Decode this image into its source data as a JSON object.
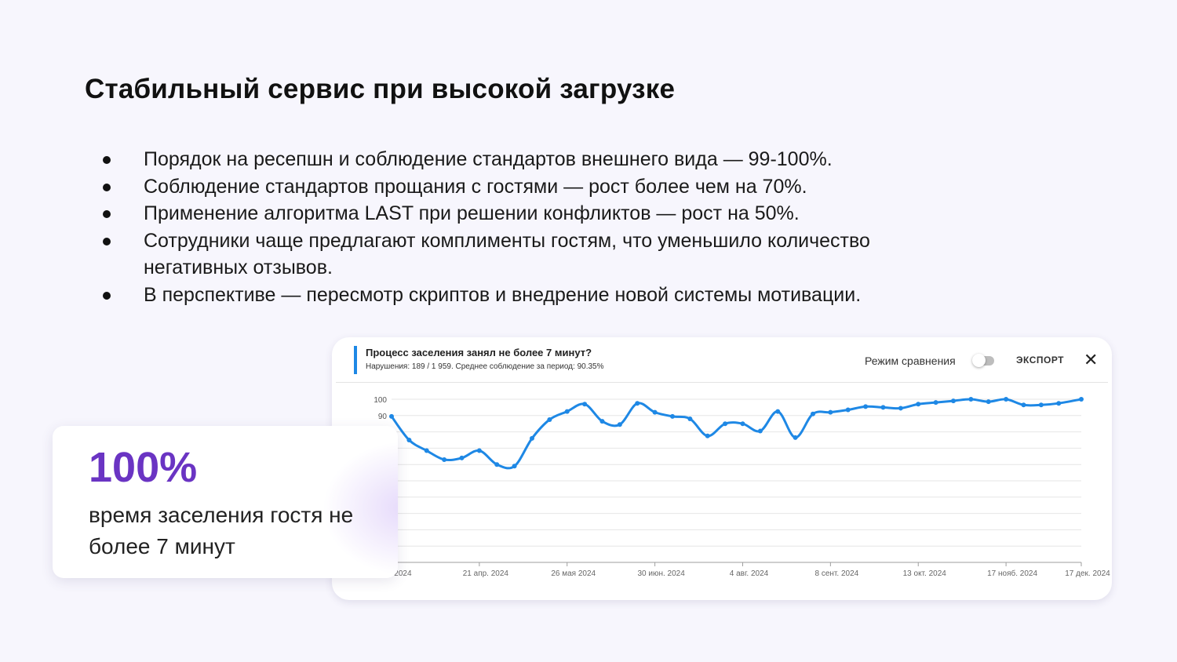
{
  "heading": "Стабильный сервис при высокой загрузке",
  "bullets": [
    "Порядок на ресепшн и соблюдение стандартов внешнего вида — 99-100%.",
    "Соблюдение стандартов прощания с гостями — рост более чем на 70%.",
    "Применение алгоритма LAST при решении конфликтов — рост на 50%.",
    "Сотрудники чаще предлагают комплименты гостям, что уменьшило количество негативных отзывов.",
    "В перспективе — пересмотр скриптов и внедрение новой системы мотивации."
  ],
  "chart_card": {
    "title": "Процесс заселения занял не более 7 минут?",
    "subtitle": "Нарушения: 189 / 1 959. Среднее соблюдение за период: 90.35%",
    "compare_label": "Режим сравнения",
    "compare_enabled": false,
    "export_label": "ЭКСПОРТ",
    "close_icon": "close-icon"
  },
  "stat": {
    "value": "100%",
    "description": "время заселения гостя не более 7 минут"
  },
  "colors": {
    "line": "#1E88E5",
    "accent_purple": "#6A34C3",
    "page_bg": "#F7F6FD"
  },
  "chart_data": {
    "type": "line",
    "title": "Процесс заселения занял не более 7 минут?",
    "xlabel": "",
    "ylabel": "",
    "ylim": [
      0,
      100
    ],
    "grid": true,
    "ytick_labels": [
      "100",
      "90"
    ],
    "xtick_labels": [
      "… 2024",
      "21 апр. 2024",
      "26 мая 2024",
      "30 июн. 2024",
      "4 авг. 2024",
      "8 сент. 2024",
      "13 окт. 2024",
      "17 нояб. 2024",
      "17 дек. 2024"
    ],
    "xtick_dates": [
      "2024-03-17",
      "2024-04-21",
      "2024-05-26",
      "2024-06-30",
      "2024-08-04",
      "2024-09-08",
      "2024-10-13",
      "2024-11-17",
      "2024-12-17"
    ],
    "series": [
      {
        "x": [
          "2024-03-17",
          "2024-03-24",
          "2024-03-31",
          "2024-04-07",
          "2024-04-14",
          "2024-04-21",
          "2024-04-28",
          "2024-05-05",
          "2024-05-12",
          "2024-05-19",
          "2024-05-26",
          "2024-06-02",
          "2024-06-09",
          "2024-06-16",
          "2024-06-23",
          "2024-06-30",
          "2024-07-07",
          "2024-07-14",
          "2024-07-21",
          "2024-07-28",
          "2024-08-04",
          "2024-08-11",
          "2024-08-18",
          "2024-08-25",
          "2024-09-01",
          "2024-09-08",
          "2024-09-15",
          "2024-09-22",
          "2024-09-29",
          "2024-10-06",
          "2024-10-13",
          "2024-10-20",
          "2024-10-27",
          "2024-11-03",
          "2024-11-10",
          "2024-11-17",
          "2024-11-24",
          "2024-12-01",
          "2024-12-08",
          "2024-12-17"
        ],
        "y": [
          89.5,
          75,
          68.5,
          63,
          64,
          68.5,
          60,
          59,
          76,
          87.5,
          92.5,
          97,
          86.5,
          84.5,
          97.5,
          92,
          89.5,
          88,
          77.5,
          85,
          85,
          80.5,
          92.5,
          76.5,
          91,
          92,
          93.5,
          95.5,
          95,
          94.5,
          97,
          98,
          99,
          100,
          98.5,
          100,
          96.5,
          96.5,
          97.5,
          100
        ]
      }
    ]
  }
}
